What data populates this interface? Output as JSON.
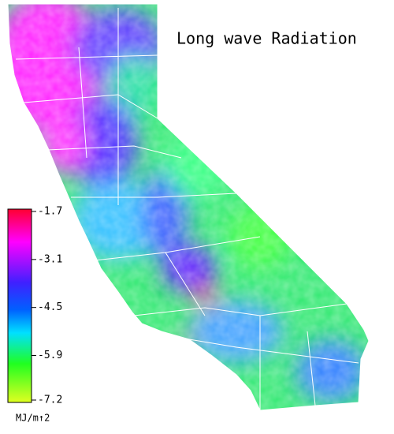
{
  "title": "Long wave Radiation",
  "colorbar": {
    "lim": [
      -7.2,
      -1.7
    ],
    "ticks": [
      -1.7,
      -3.1,
      -4.5,
      -5.9,
      -7.2
    ],
    "unit": "MJ/m↑2"
  }
}
